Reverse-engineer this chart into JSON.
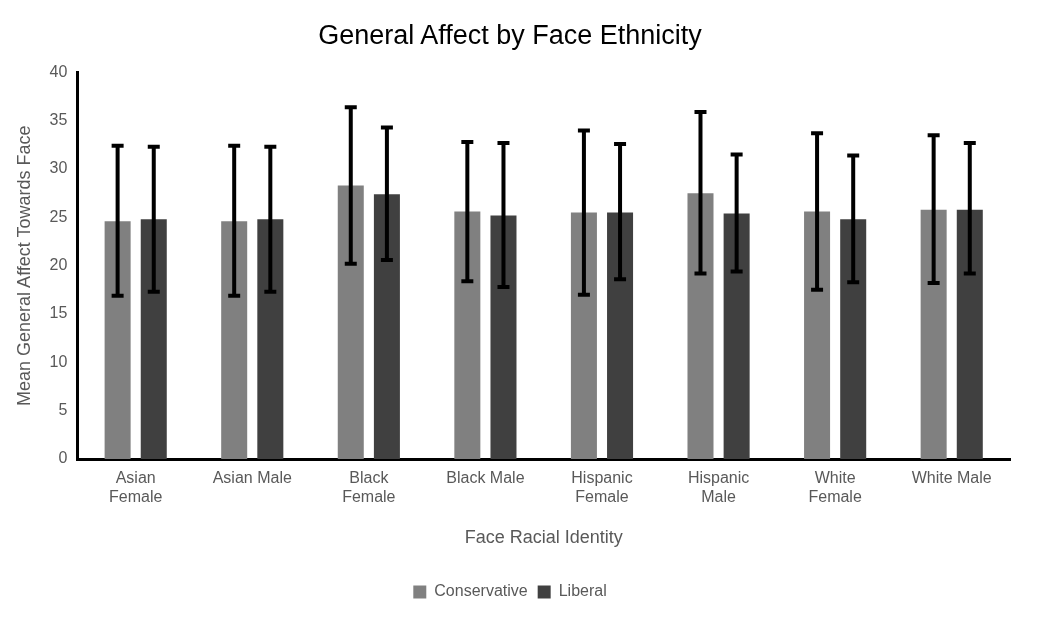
{
  "chart_data": {
    "type": "bar",
    "title": "General Affect by Face Ethnicity",
    "xlabel": "Face Racial Identity",
    "ylabel": "Mean General Affect Towards Face",
    "categories": [
      "Asian Female",
      "Asian Male",
      "Black Female",
      "Black Male",
      "Hispanic Female",
      "Hispanic Male",
      "White Female",
      "White Male"
    ],
    "series": [
      {
        "name": "Conservative",
        "color": "#808080",
        "values": [
          24.6,
          24.6,
          28.3,
          25.6,
          25.5,
          27.5,
          25.6,
          25.8
        ],
        "errors": [
          [
            16.9,
            32.4
          ],
          [
            16.9,
            32.4
          ],
          [
            20.2,
            36.4
          ],
          [
            18.4,
            32.8
          ],
          [
            17.0,
            34.0
          ],
          [
            19.2,
            35.9
          ],
          [
            17.5,
            33.7
          ],
          [
            18.2,
            33.5
          ]
        ]
      },
      {
        "name": "Liberal",
        "color": "#404040",
        "values": [
          24.8,
          24.8,
          27.4,
          25.2,
          25.5,
          25.4,
          24.8,
          25.8
        ],
        "errors": [
          [
            17.3,
            32.3
          ],
          [
            17.3,
            32.3
          ],
          [
            20.6,
            34.3
          ],
          [
            17.8,
            32.7
          ],
          [
            18.6,
            32.6
          ],
          [
            19.4,
            31.5
          ],
          [
            18.3,
            31.4
          ],
          [
            19.2,
            32.7
          ]
        ]
      }
    ],
    "ylim": [
      0,
      40
    ],
    "yticks": [
      0,
      5,
      10,
      15,
      20,
      25,
      30,
      35,
      40
    ],
    "grid": false,
    "legend": "bottom"
  }
}
